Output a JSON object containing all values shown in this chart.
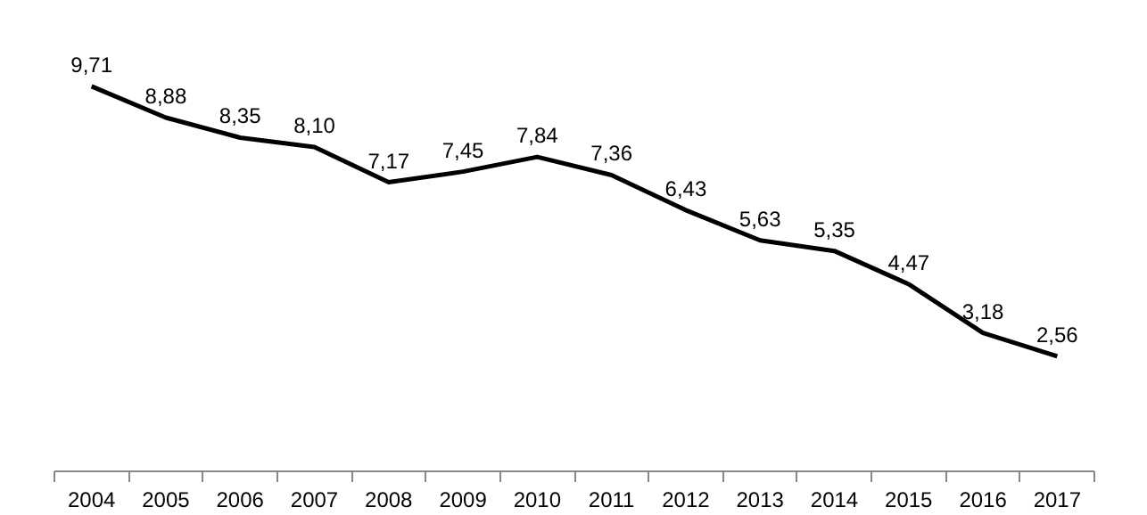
{
  "chart_data": {
    "type": "line",
    "categories": [
      "2004",
      "2005",
      "2006",
      "2007",
      "2008",
      "2009",
      "2010",
      "2011",
      "2012",
      "2013",
      "2014",
      "2015",
      "2016",
      "2017"
    ],
    "series": [
      {
        "color": "#000000",
        "values": [
          9.71,
          8.88,
          8.35,
          8.1,
          7.17,
          7.45,
          7.84,
          7.36,
          6.43,
          5.63,
          5.35,
          4.47,
          3.18,
          2.56
        ],
        "value_labels": [
          "9,71",
          "8,88",
          "8,35",
          "8,10",
          "7,17",
          "7,45",
          "7,84",
          "7,36",
          "6,43",
          "5,63",
          "5,35",
          "4,47",
          "3,18",
          "2,56"
        ]
      }
    ],
    "tick_labels": "x",
    "grid": false,
    "marker": "none",
    "line_style": "solid"
  }
}
